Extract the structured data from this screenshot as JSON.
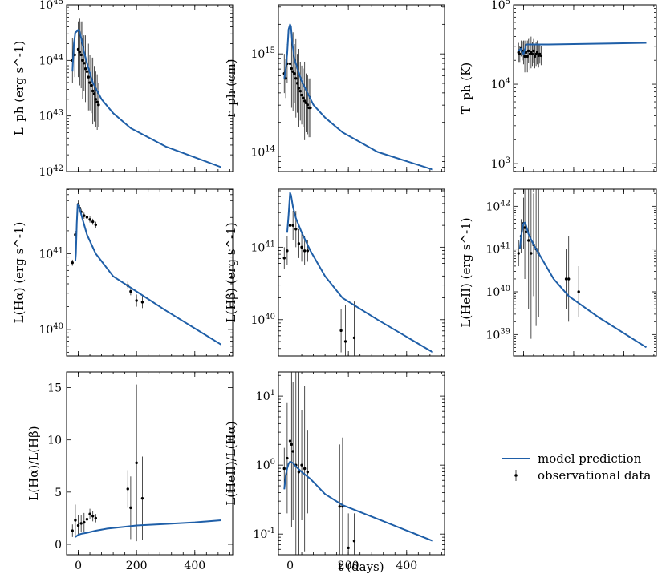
{
  "chart_data": {
    "type": "line",
    "shared_xlabel": "t   (days)",
    "xlim": [
      -40,
      530
    ],
    "x_ticks": [
      0,
      200,
      400
    ],
    "legend": {
      "position": "right",
      "model_label": "model prediction",
      "data_label": "observational data",
      "model_color": "#1f5fa8",
      "data_color": "#000000"
    },
    "panels": [
      {
        "id": "L_ph",
        "ylabel": "L_ph  (erg s^-1)",
        "scale": "log",
        "ylim_exp": [
          42,
          45
        ],
        "y_ticks": [
          42,
          43,
          44,
          45
        ],
        "model": [
          [
            -20,
            43.8
          ],
          [
            -15,
            44.3
          ],
          [
            -10,
            44.5
          ],
          [
            -5,
            44.52
          ],
          [
            0,
            44.55
          ],
          [
            5,
            44.52
          ],
          [
            10,
            44.4
          ],
          [
            20,
            44.15
          ],
          [
            30,
            43.95
          ],
          [
            50,
            43.6
          ],
          [
            80,
            43.3
          ],
          [
            120,
            43.05
          ],
          [
            180,
            42.78
          ],
          [
            300,
            42.45
          ],
          [
            490,
            42.08
          ]
        ],
        "obs": [
          [
            -20,
            44.0,
            0.4
          ],
          [
            -12,
            44.1,
            0.4
          ],
          [
            0,
            44.2,
            0.5
          ],
          [
            5,
            44.15,
            0.6
          ],
          [
            10,
            44.1,
            0.6
          ],
          [
            15,
            44.0,
            0.7
          ],
          [
            20,
            43.95,
            0.5
          ],
          [
            25,
            43.85,
            0.6
          ],
          [
            30,
            43.8,
            0.5
          ],
          [
            35,
            43.7,
            0.6
          ],
          [
            40,
            43.6,
            0.5
          ],
          [
            45,
            43.55,
            0.5
          ],
          [
            50,
            43.45,
            0.6
          ],
          [
            55,
            43.4,
            0.5
          ],
          [
            60,
            43.3,
            0.5
          ],
          [
            65,
            43.25,
            0.5
          ],
          [
            70,
            43.2,
            0.4
          ]
        ]
      },
      {
        "id": "r_ph",
        "ylabel": "r_ph   (cm)",
        "scale": "log",
        "ylim_exp": [
          13.8,
          15.5
        ],
        "y_ticks": [
          14,
          15
        ],
        "model": [
          [
            -20,
            14.75
          ],
          [
            -15,
            14.85
          ],
          [
            -10,
            15.0
          ],
          [
            -5,
            15.25
          ],
          [
            0,
            15.3
          ],
          [
            3,
            15.28
          ],
          [
            8,
            15.1
          ],
          [
            15,
            14.95
          ],
          [
            25,
            14.85
          ],
          [
            40,
            14.72
          ],
          [
            60,
            14.6
          ],
          [
            80,
            14.48
          ],
          [
            120,
            14.35
          ],
          [
            180,
            14.2
          ],
          [
            300,
            14.0
          ],
          [
            490,
            13.82
          ]
        ],
        "obs": [
          [
            -20,
            14.8,
            0.2
          ],
          [
            -15,
            14.75,
            0.2
          ],
          [
            -10,
            14.9,
            0.2
          ],
          [
            0,
            14.9,
            0.3
          ],
          [
            5,
            14.85,
            0.4
          ],
          [
            10,
            14.82,
            0.4
          ],
          [
            15,
            14.8,
            0.3
          ],
          [
            20,
            14.75,
            0.4
          ],
          [
            25,
            14.7,
            0.3
          ],
          [
            30,
            14.65,
            0.4
          ],
          [
            35,
            14.62,
            0.3
          ],
          [
            40,
            14.58,
            0.3
          ],
          [
            45,
            14.55,
            0.3
          ],
          [
            50,
            14.52,
            0.4
          ],
          [
            55,
            14.5,
            0.3
          ],
          [
            60,
            14.48,
            0.3
          ],
          [
            65,
            14.45,
            0.3
          ],
          [
            70,
            14.45,
            0.3
          ]
        ]
      },
      {
        "id": "T_ph",
        "ylabel": "T_ph   (K)",
        "scale": "log",
        "ylim_exp": [
          2.9,
          5.0
        ],
        "y_ticks": [
          3,
          4,
          5
        ],
        "model": [
          [
            -20,
            4.42
          ],
          [
            -10,
            4.45
          ],
          [
            -5,
            4.4
          ],
          [
            0,
            4.38
          ],
          [
            5,
            4.44
          ],
          [
            10,
            4.5
          ],
          [
            30,
            4.5
          ],
          [
            100,
            4.5
          ],
          [
            200,
            4.505
          ],
          [
            300,
            4.51
          ],
          [
            490,
            4.52
          ]
        ],
        "obs": [
          [
            -20,
            4.4,
            0.12
          ],
          [
            -15,
            4.38,
            0.1
          ],
          [
            -10,
            4.45,
            0.1
          ],
          [
            -5,
            4.42,
            0.12
          ],
          [
            0,
            4.4,
            0.15
          ],
          [
            5,
            4.35,
            0.2
          ],
          [
            10,
            4.4,
            0.15
          ],
          [
            15,
            4.35,
            0.2
          ],
          [
            20,
            4.42,
            0.15
          ],
          [
            25,
            4.38,
            0.2
          ],
          [
            30,
            4.4,
            0.2
          ],
          [
            35,
            4.38,
            0.15
          ],
          [
            40,
            4.42,
            0.15
          ],
          [
            45,
            4.35,
            0.15
          ],
          [
            50,
            4.38,
            0.15
          ],
          [
            55,
            4.4,
            0.15
          ],
          [
            60,
            4.36,
            0.15
          ],
          [
            65,
            4.38,
            0.12
          ],
          [
            70,
            4.36,
            0.12
          ]
        ]
      },
      {
        "id": "L_Ha",
        "ylabel": "L(Hα)   (erg s^-1)",
        "scale": "log",
        "ylim_exp": [
          39.65,
          41.85
        ],
        "y_ticks": [
          40,
          41
        ],
        "model": [
          [
            -10,
            40.9
          ],
          [
            -8,
            41.0
          ],
          [
            -5,
            41.4
          ],
          [
            -2,
            41.65
          ],
          [
            0,
            41.65
          ],
          [
            3,
            41.62
          ],
          [
            8,
            41.55
          ],
          [
            15,
            41.45
          ],
          [
            30,
            41.25
          ],
          [
            60,
            41.0
          ],
          [
            120,
            40.7
          ],
          [
            180,
            40.55
          ],
          [
            300,
            40.25
          ],
          [
            490,
            39.8
          ]
        ],
        "obs": [
          [
            -20,
            40.88,
            0.04
          ],
          [
            -10,
            41.25,
            0.05
          ],
          [
            0,
            41.65,
            0.05
          ],
          [
            5,
            41.6,
            0.04
          ],
          [
            10,
            41.55,
            0.04
          ],
          [
            20,
            41.5,
            0.04
          ],
          [
            30,
            41.48,
            0.04
          ],
          [
            40,
            41.45,
            0.04
          ],
          [
            50,
            41.42,
            0.04
          ],
          [
            60,
            41.38,
            0.04
          ],
          [
            170,
            40.58,
            0.05
          ],
          [
            180,
            40.5,
            0.05
          ],
          [
            200,
            40.38,
            0.08
          ],
          [
            220,
            40.36,
            0.08
          ]
        ]
      },
      {
        "id": "L_Hb",
        "ylabel": "L(Hβ)   (erg s^-1)",
        "scale": "log",
        "ylim_exp": [
          39.5,
          41.8
        ],
        "y_ticks": [
          40,
          41
        ],
        "model": [
          [
            -10,
            41.2
          ],
          [
            -5,
            41.45
          ],
          [
            0,
            41.75
          ],
          [
            3,
            41.72
          ],
          [
            10,
            41.55
          ],
          [
            20,
            41.4
          ],
          [
            40,
            41.2
          ],
          [
            70,
            40.95
          ],
          [
            120,
            40.6
          ],
          [
            180,
            40.3
          ],
          [
            300,
            40.0
          ],
          [
            490,
            39.55
          ]
        ],
        "obs": [
          [
            -20,
            40.85,
            0.15
          ],
          [
            -10,
            40.95,
            0.2
          ],
          [
            0,
            41.3,
            0.2
          ],
          [
            10,
            41.3,
            0.2
          ],
          [
            20,
            41.25,
            0.25
          ],
          [
            30,
            41.05,
            0.2
          ],
          [
            40,
            41.0,
            0.2
          ],
          [
            50,
            40.95,
            0.2
          ],
          [
            60,
            40.95,
            0.15
          ],
          [
            175,
            39.85,
            0.3
          ],
          [
            190,
            39.7,
            0.5
          ],
          [
            220,
            39.75,
            0.5
          ]
        ]
      },
      {
        "id": "L_HeII",
        "ylabel": "L(HeII)   (erg s^-1)",
        "scale": "log",
        "ylim_exp": [
          38.5,
          42.4
        ],
        "y_ticks": [
          39,
          40,
          41,
          42
        ],
        "model": [
          [
            -15,
            41.0
          ],
          [
            -10,
            41.3
          ],
          [
            -5,
            41.45
          ],
          [
            0,
            41.6
          ],
          [
            5,
            41.62
          ],
          [
            10,
            41.55
          ],
          [
            20,
            41.35
          ],
          [
            40,
            41.1
          ],
          [
            70,
            40.8
          ],
          [
            120,
            40.3
          ],
          [
            180,
            39.9
          ],
          [
            300,
            39.4
          ],
          [
            490,
            38.7
          ]
        ],
        "obs": [
          [
            -20,
            40.9,
            0.3
          ],
          [
            -10,
            41.3,
            0.4
          ],
          [
            0,
            41.6,
            0.6
          ],
          [
            5,
            41.5,
            1.2
          ],
          [
            10,
            41.4,
            1.5
          ],
          [
            20,
            41.2,
            1.6
          ],
          [
            30,
            40.9,
            2.0
          ],
          [
            40,
            41.1,
            1.2
          ],
          [
            50,
            41.0,
            1.8
          ],
          [
            60,
            40.9,
            1.5
          ],
          [
            170,
            40.3,
            0.7
          ],
          [
            180,
            40.3,
            1.0
          ],
          [
            220,
            40.0,
            0.6
          ]
        ]
      },
      {
        "id": "ratio_Ha_Hb",
        "ylabel": "L(Hα)/L(Hβ)",
        "scale": "linear",
        "ylim": [
          -1,
          16.5
        ],
        "y_ticks": [
          0,
          5,
          10,
          15
        ],
        "model": [
          [
            -10,
            0.7
          ],
          [
            0,
            0.9
          ],
          [
            10,
            1.0
          ],
          [
            30,
            1.1
          ],
          [
            60,
            1.3
          ],
          [
            100,
            1.5
          ],
          [
            150,
            1.65
          ],
          [
            200,
            1.8
          ],
          [
            300,
            1.95
          ],
          [
            400,
            2.1
          ],
          [
            490,
            2.3
          ]
        ],
        "obs": [
          [
            -20,
            1.3,
            0.6
          ],
          [
            -10,
            2.3,
            1.5
          ],
          [
            0,
            1.8,
            1.0
          ],
          [
            10,
            2.0,
            0.8
          ],
          [
            20,
            2.1,
            0.9
          ],
          [
            30,
            2.4,
            0.7
          ],
          [
            40,
            2.9,
            0.5
          ],
          [
            50,
            2.7,
            0.5
          ],
          [
            60,
            2.5,
            0.4
          ],
          [
            170,
            5.3,
            1.8
          ],
          [
            180,
            3.5,
            3.0
          ],
          [
            200,
            7.8,
            7.5
          ],
          [
            220,
            4.4,
            4.0
          ]
        ]
      },
      {
        "id": "ratio_HeII_Ha",
        "ylabel": "L(HeII)/L(Hα)",
        "scale": "log",
        "ylim_exp": [
          -1.3,
          1.35
        ],
        "y_ticks": [
          -1,
          0,
          1
        ],
        "model": [
          [
            -20,
            -0.35
          ],
          [
            -15,
            -0.15
          ],
          [
            -10,
            -0.05
          ],
          [
            -5,
            0.02
          ],
          [
            0,
            0.05
          ],
          [
            10,
            0.03
          ],
          [
            20,
            -0.02
          ],
          [
            40,
            -0.1
          ],
          [
            70,
            -0.2
          ],
          [
            120,
            -0.42
          ],
          [
            180,
            -0.58
          ],
          [
            300,
            -0.78
          ],
          [
            490,
            -1.1
          ]
        ],
        "obs": [
          [
            -20,
            -0.05,
            0.3
          ],
          [
            -10,
            0.1,
            0.8
          ],
          [
            0,
            0.35,
            1.0
          ],
          [
            5,
            0.3,
            1.2
          ],
          [
            10,
            0.2,
            1.0
          ],
          [
            20,
            0.0,
            1.5
          ],
          [
            30,
            -0.1,
            1.5
          ],
          [
            40,
            0.0,
            0.8
          ],
          [
            50,
            -0.05,
            1.2
          ],
          [
            60,
            -0.1,
            0.6
          ],
          [
            170,
            -0.6,
            0.9
          ],
          [
            180,
            -0.6,
            1.0
          ],
          [
            200,
            -1.2,
            0.5
          ],
          [
            220,
            -1.1,
            0.4
          ]
        ]
      }
    ]
  }
}
